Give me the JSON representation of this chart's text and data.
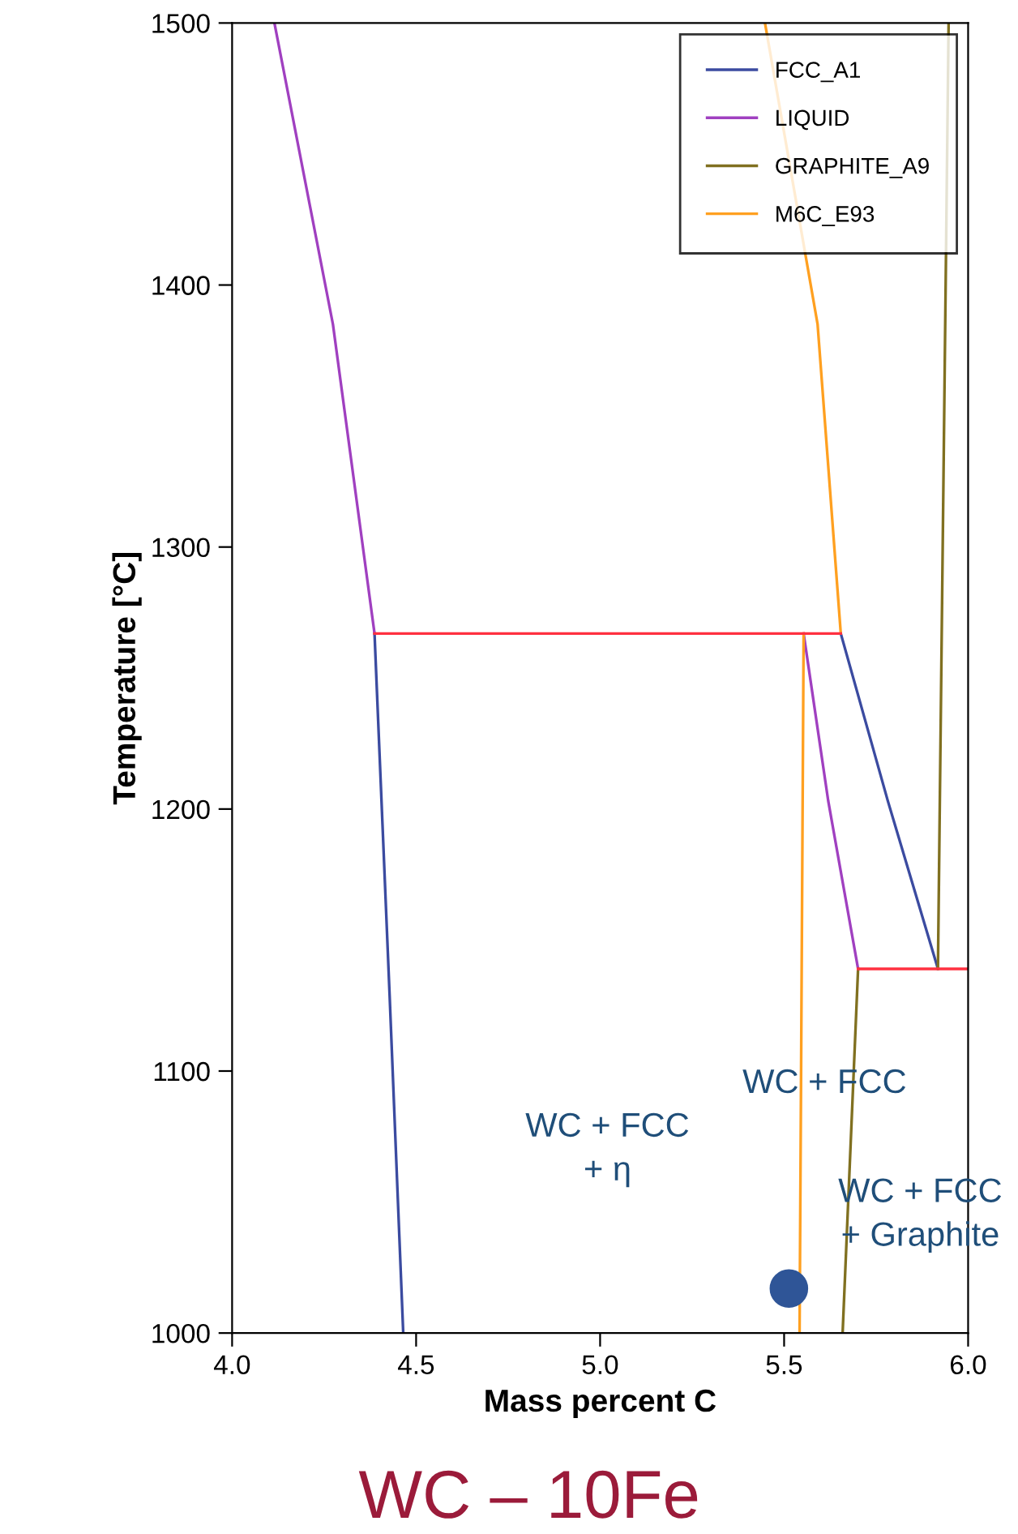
{
  "chart_data": {
    "type": "line",
    "title": "WC – 10Fe",
    "xlabel": "Mass percent C",
    "ylabel": "Temperature [°C]",
    "xlim": [
      4.0,
      6.0
    ],
    "ylim": [
      1000,
      1500
    ],
    "xticks": [
      {
        "value": 4.0,
        "label": "4.0"
      },
      {
        "value": 4.5,
        "label": "4.5"
      },
      {
        "value": 5.0,
        "label": "5.0"
      },
      {
        "value": 5.5,
        "label": "5.5"
      },
      {
        "value": 6.0,
        "label": "6.0"
      }
    ],
    "yticks": [
      1000,
      1100,
      1200,
      1300,
      1400,
      1500
    ],
    "grid": false,
    "legend": "top right",
    "marker": "none",
    "line_style": "solid",
    "series": [
      {
        "name": "FCC_A1",
        "color": "#3b4ba0",
        "x": [
          4.387,
          4.428,
          4.465,
          null,
          5.654,
          5.782,
          5.918
        ],
        "values": [
          1267,
          1129,
          1000,
          null,
          1267,
          1203,
          1139
        ]
      },
      {
        "name": "LIQUID",
        "color": "#a040c0",
        "x": [
          4.115,
          4.274,
          4.387,
          null,
          5.553,
          5.62,
          5.701
        ],
        "values": [
          1500,
          1385,
          1267,
          null,
          1267,
          1203,
          1139
        ]
      },
      {
        "name": "GRAPHITE_A9",
        "color": "#807020",
        "x": [
          5.918,
          5.947,
          null,
          5.659,
          5.701
        ],
        "values": [
          1139,
          1500,
          null,
          1000,
          1139
        ]
      },
      {
        "name": "M6C_E93",
        "color": "#ffa020",
        "x": [
          5.448,
          5.591,
          5.654,
          null,
          5.553,
          5.542
        ],
        "values": [
          1500,
          1385,
          1267,
          null,
          1267,
          1000
        ]
      },
      {
        "color": "#ff3040",
        "x": [
          4.387,
          5.654,
          null,
          5.701,
          6.0
        ],
        "values": [
          1267,
          1267,
          null,
          1139,
          1139
        ]
      },
      {
        "type": "scatter",
        "marker": "circle",
        "color": "#2f5597",
        "x": [
          5.513
        ],
        "values": [
          1017
        ]
      }
    ],
    "annotations": [
      "WC + FCC\n+ η",
      "WC + FCC",
      "WC + FCC\n+ Graphite"
    ]
  }
}
